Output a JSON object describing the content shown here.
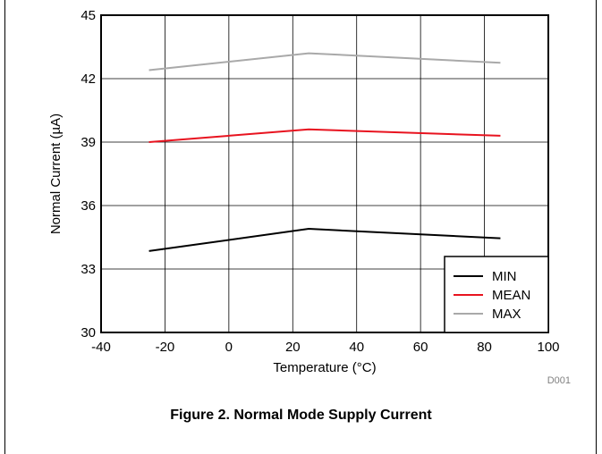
{
  "chart_data": {
    "type": "line",
    "xlabel": "Temperature (°C)",
    "ylabel": "Normal Current (µA)",
    "xlim": [
      -40,
      100
    ],
    "ylim": [
      30,
      45
    ],
    "xticks": [
      -40,
      -20,
      0,
      20,
      40,
      60,
      80,
      100
    ],
    "yticks": [
      30,
      33,
      36,
      39,
      42,
      45
    ],
    "grid": true,
    "legend_position": "bottom-right",
    "x": [
      -25,
      25,
      85
    ],
    "series": [
      {
        "name": "MIN",
        "color": "#000000",
        "values": [
          33.85,
          34.9,
          34.45
        ]
      },
      {
        "name": "MEAN",
        "color": "#e8131f",
        "values": [
          39.0,
          39.6,
          39.3
        ]
      },
      {
        "name": "MAX",
        "color": "#a9a9a9",
        "values": [
          42.4,
          43.2,
          42.75
        ]
      }
    ],
    "annotation": "D001"
  },
  "caption": "Figure 2. Normal Mode Supply Current"
}
